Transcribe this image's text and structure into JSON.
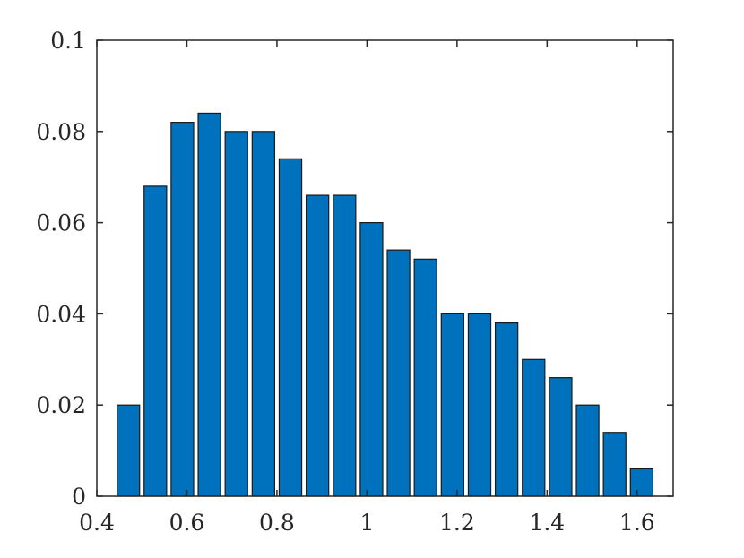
{
  "chart_data": {
    "type": "bar",
    "x": [
      0.47,
      0.53,
      0.59,
      0.65,
      0.71,
      0.77,
      0.83,
      0.89,
      0.95,
      1.01,
      1.07,
      1.13,
      1.19,
      1.25,
      1.31,
      1.37,
      1.43,
      1.49,
      1.55,
      1.61
    ],
    "values": [
      0.02,
      0.068,
      0.082,
      0.084,
      0.08,
      0.08,
      0.074,
      0.066,
      0.066,
      0.06,
      0.054,
      0.052,
      0.04,
      0.04,
      0.038,
      0.03,
      0.026,
      0.02,
      0.014,
      0.006
    ],
    "bar_width": 0.05,
    "xlim": [
      0.4,
      1.68
    ],
    "ylim": [
      0,
      0.1
    ],
    "xticks": [
      0.4,
      0.6,
      0.8,
      1.0,
      1.2,
      1.4,
      1.6
    ],
    "xtick_labels": [
      "0.4",
      "0.6",
      "0.8",
      "1",
      "1.2",
      "1.4",
      "1.6"
    ],
    "yticks": [
      0,
      0.02,
      0.04,
      0.06,
      0.08,
      0.1
    ],
    "ytick_labels": [
      "0",
      "0.02",
      "0.04",
      "0.06",
      "0.08",
      "0.1"
    ],
    "grid": false,
    "legend": "none",
    "bar_color": "#0072BD",
    "edge_color": "#1a1a1a",
    "axis_color": "#262626"
  }
}
